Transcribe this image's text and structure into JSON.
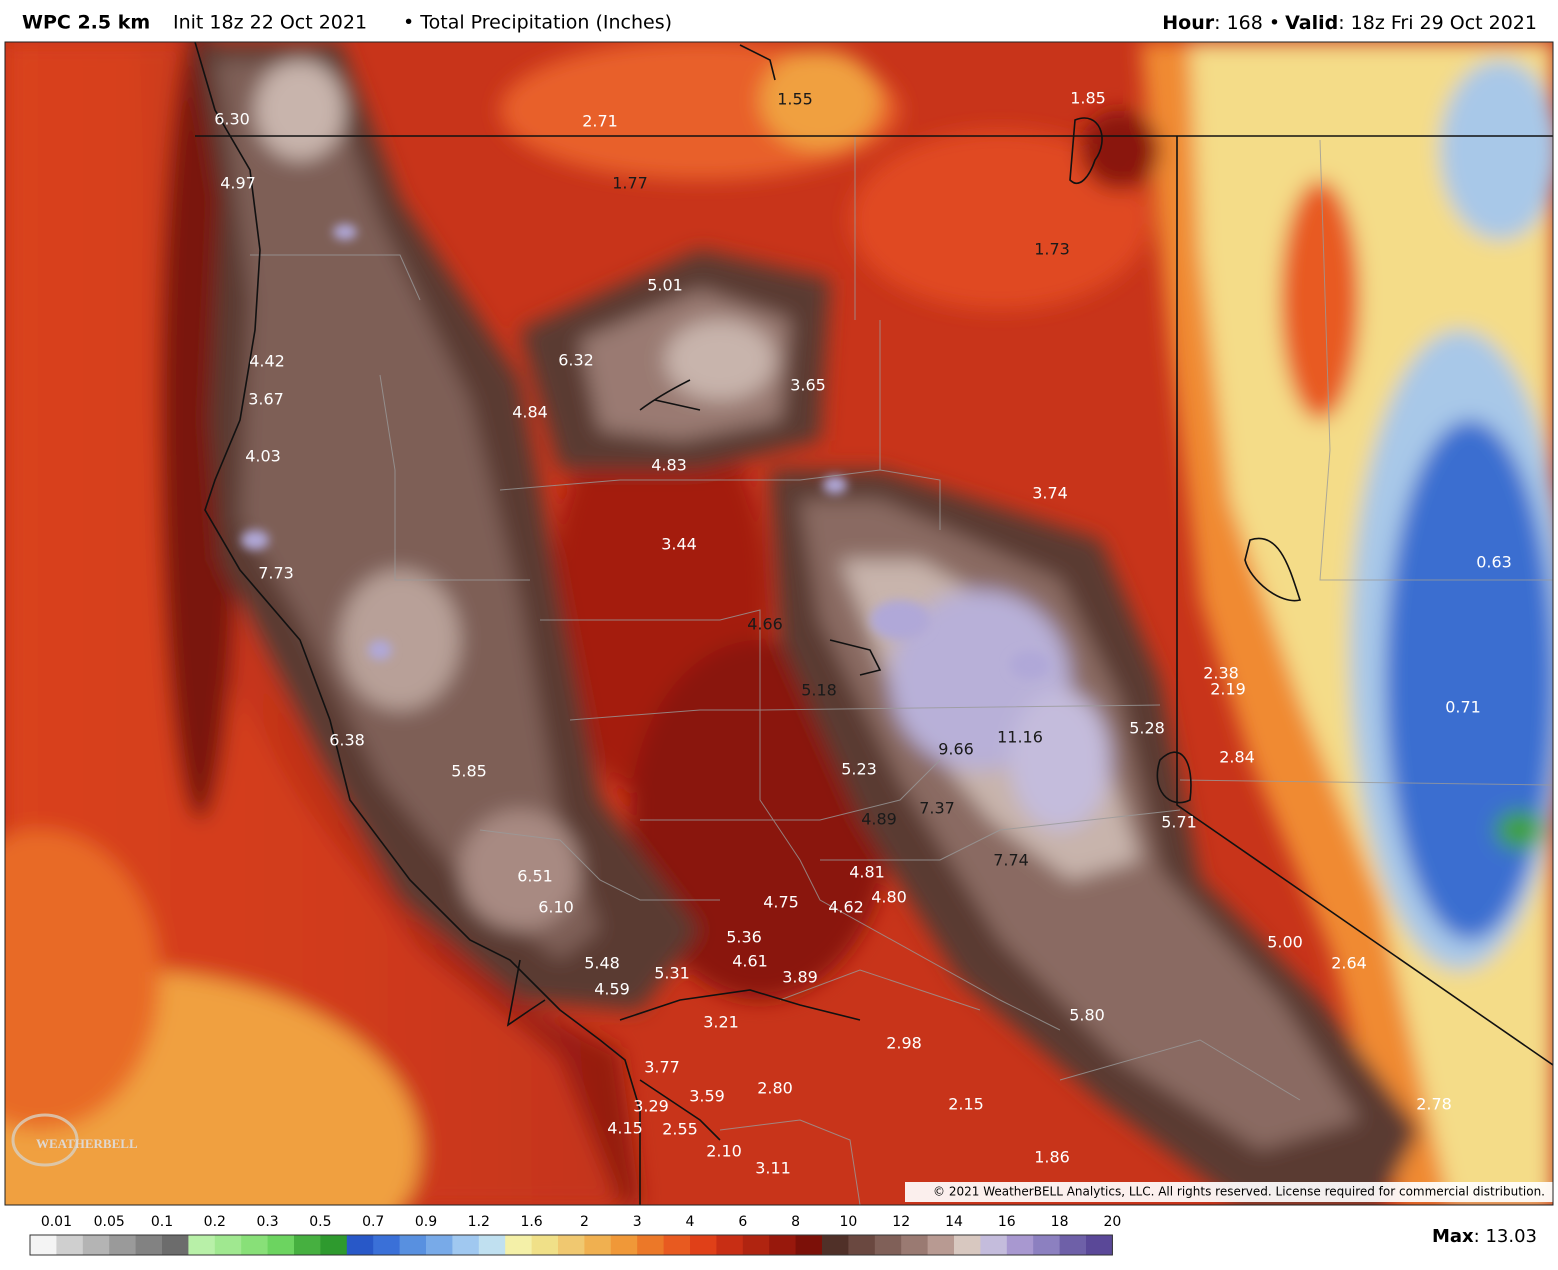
{
  "header": {
    "model": "WPC 2.5 km",
    "init": "Init 18z 22 Oct 2021",
    "field": "• Total Precipitation (Inches)",
    "hour_label": "Hour",
    "hour_text": ": 168 •",
    "valid_label": "Valid",
    "valid_text": ": 18z Fri 29 Oct 2021"
  },
  "map_labels": [
    "6.30",
    "2.71",
    "1.55",
    "1.85",
    "4.97",
    "1.77",
    "1.73",
    "5.01",
    "4.42",
    "6.32",
    "3.67",
    "4.84",
    "3.65",
    "4.03",
    "4.83",
    "3.74",
    "3.44",
    "7.73",
    "0.63",
    "4.66",
    "5.18",
    "2.38",
    "2.19",
    "0.71",
    "6.38",
    "5.28",
    "11.16",
    "9.66",
    "2.84",
    "5.85",
    "5.23",
    "7.37",
    "4.89",
    "5.71",
    "7.74",
    "6.51",
    "4.81",
    "4.80",
    "4.75",
    "4.62",
    "6.10",
    "5.36",
    "5.00",
    "4.61",
    "5.48",
    "2.64",
    "5.31",
    "3.89",
    "4.59",
    "5.80",
    "3.21",
    "2.98",
    "3.77",
    "3.59",
    "2.80",
    "3.29",
    "2.15",
    "2.78",
    "4.15",
    "2.55",
    "2.10",
    "1.86",
    "3.11"
  ],
  "copyright": "© 2021 WeatherBELL Analytics, LLC. All rights reserved. License required for commercial distribution.",
  "logo": "WEATHERBELL",
  "legend": {
    "ticks": [
      "0.01",
      "0.05",
      "0.1",
      "0.2",
      "0.3",
      "0.5",
      "0.7",
      "0.9",
      "1.2",
      "1.6",
      "2",
      "3",
      "4",
      "6",
      "8",
      "10",
      "12",
      "14",
      "16",
      "18",
      "20"
    ],
    "colors": [
      "#f4f4f4",
      "#cfcfcf",
      "#b4b4b4",
      "#9a9a9a",
      "#828282",
      "#6c6c6c",
      "#b8f0a8",
      "#a0e890",
      "#88e078",
      "#6cd460",
      "#46b040",
      "#2e9a2e",
      "#2858c8",
      "#3a70d8",
      "#5890e0",
      "#78aae8",
      "#a0c8f0",
      "#c0e0f0",
      "#f4f0a8",
      "#f0e088",
      "#f0c870",
      "#f0b050",
      "#f09838",
      "#ec7828",
      "#e85a20",
      "#e04018",
      "#c82e14",
      "#b02410",
      "#98180c",
      "#7c1008",
      "#503028",
      "#6a4840",
      "#806058",
      "#9a7a72",
      "#b89a92",
      "#d8c8c0",
      "#c4bcdc",
      "#a898d0",
      "#8c80c0",
      "#6e60a8",
      "#5a4898"
    ],
    "max_label": "Max",
    "max_text": ": 13.03"
  }
}
